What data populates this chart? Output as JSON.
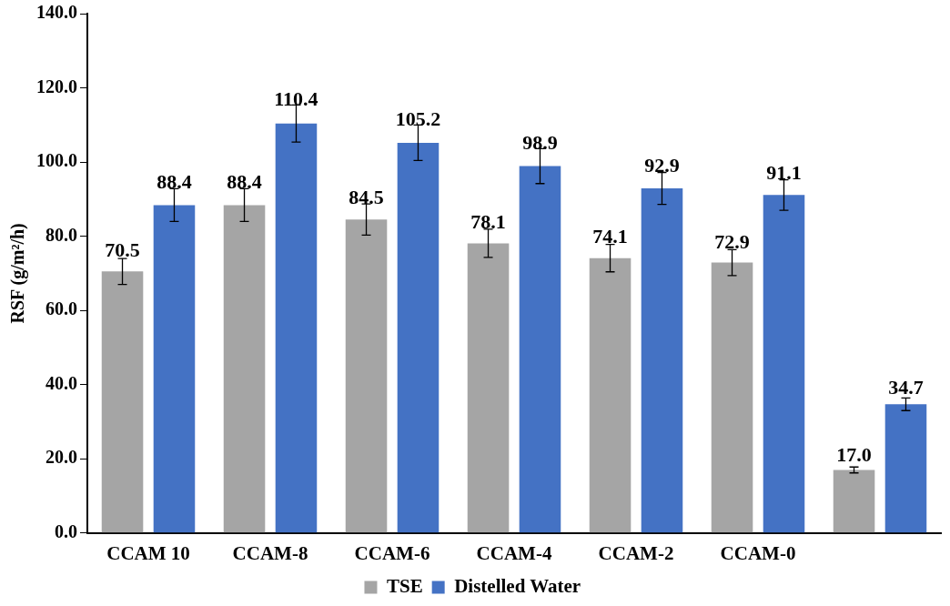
{
  "chart_data": {
    "type": "bar",
    "ylabel": "RSF (g/m²/h)",
    "categories": [
      "CCAM 10",
      "CCAM-8",
      "CCAM-6",
      "CCAM-4",
      "CCAM-2",
      "CCAM-0",
      null
    ],
    "series": [
      {
        "name": "TSE",
        "color": "#a5a5a5",
        "values": [
          70.5,
          88.4,
          84.5,
          78.1,
          74.1,
          72.9,
          17.0
        ],
        "errors": [
          3.5,
          4.4,
          4.2,
          3.8,
          3.7,
          3.5,
          0.8
        ],
        "value_labels": [
          "70.5",
          "88.4",
          "84.5",
          "78.1",
          "74.1",
          "72.9",
          "17.0"
        ]
      },
      {
        "name": "Distelled Water",
        "color": "#4472c4",
        "values": [
          88.4,
          110.4,
          105.2,
          98.9,
          92.9,
          91.1,
          34.7
        ],
        "errors": [
          4.4,
          5,
          4.8,
          4.7,
          4.3,
          4.1,
          1.7
        ],
        "value_labels": [
          "88.4",
          "110.4",
          "105.2",
          "98.9",
          "92.9",
          "91.1",
          "34.7"
        ]
      }
    ],
    "ylim": [
      0,
      140
    ],
    "yticks": [
      {
        "value": 0,
        "label": "0.0"
      },
      {
        "value": 20,
        "label": "20.0"
      },
      {
        "value": 40,
        "label": "40.0"
      },
      {
        "value": 60,
        "label": "60.0"
      },
      {
        "value": 80,
        "label": "80.0"
      },
      {
        "value": 100,
        "label": "100.0"
      },
      {
        "value": 120,
        "label": "120.0"
      },
      {
        "value": 140,
        "label": "140.0"
      }
    ],
    "legend": "bottom",
    "grid": false
  }
}
